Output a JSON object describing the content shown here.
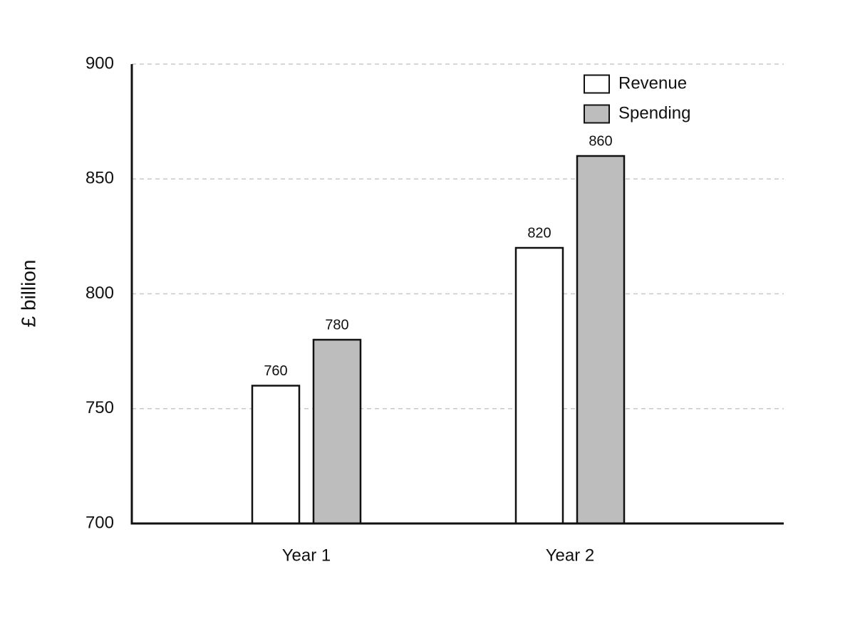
{
  "chart_data": {
    "type": "bar",
    "ylabel": "£ billion",
    "categories": [
      "Year 1",
      "Year 2"
    ],
    "series": [
      {
        "name": "Revenue",
        "color": "#ffffff",
        "values": [
          760,
          820
        ]
      },
      {
        "name": "Spending",
        "color": "#bdbdbd",
        "values": [
          780,
          860
        ]
      }
    ],
    "ylim": [
      700,
      900
    ],
    "yticks": [
      700,
      750,
      800,
      850,
      900
    ],
    "grid": true,
    "legend": "upper right"
  }
}
